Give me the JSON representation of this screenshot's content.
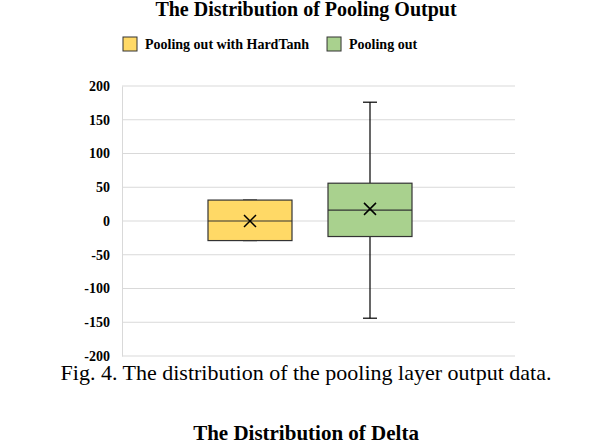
{
  "chart_data": {
    "type": "box",
    "title": "The Distribution of Pooling Output",
    "series": [
      {
        "name": "Pooling out with HardTanh",
        "color": "#ffd966",
        "min": -29,
        "q1": -29,
        "median": 0,
        "q3": 31,
        "max": 31,
        "mean": 0
      },
      {
        "name": "Pooling out",
        "color": "#a9d18e",
        "min": -144,
        "q1": -23,
        "median": 16,
        "q3": 56,
        "max": 176,
        "mean": 18
      }
    ],
    "ylim": [
      -200,
      200
    ],
    "yticks": [
      -200,
      -150,
      -100,
      -50,
      0,
      50,
      100,
      150,
      200
    ],
    "grid": true,
    "legend": "top",
    "marker": "x",
    "tick_labels": "y",
    "annotations": [
      "Fig. 4. The distribution of the pooling layer output data.",
      "The Distribution of Delta"
    ]
  }
}
